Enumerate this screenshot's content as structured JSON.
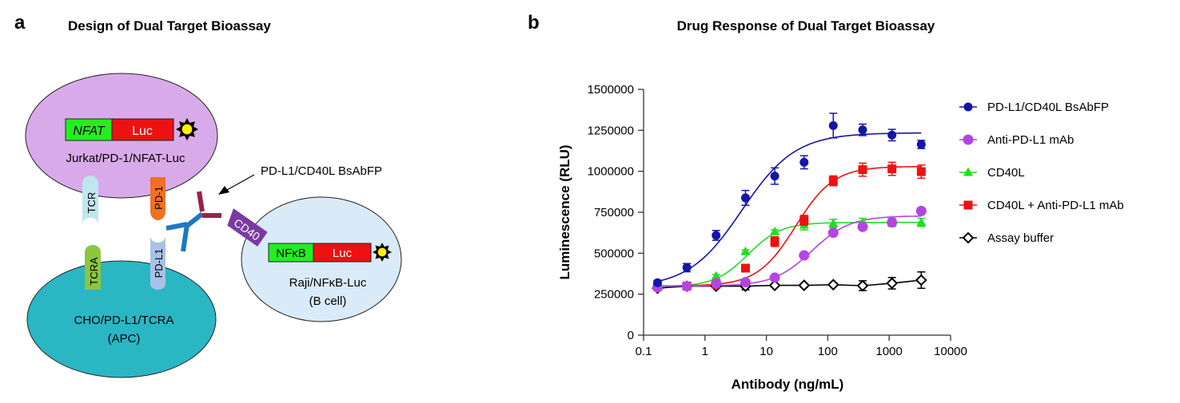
{
  "panel_a": {
    "letter": "a",
    "title": "Design of Dual Target Bioassay",
    "jurkat_cell": "Jurkat/PD-1/NFAT-Luc",
    "nfat": "NFAT",
    "luc": "Luc",
    "cho_cell_line1": "CHO/PD-L1/TCRA",
    "cho_cell_line2": "(APC)",
    "raji_cell_line1": "Raji/NFκB-Luc",
    "raji_cell_line2": "(B cell)",
    "nfkb": "NFκB",
    "tcr": "TCR",
    "tcra": "TCRA",
    "pd1": "PD-1",
    "pdl1": "PD-L1",
    "cd40": "CD40",
    "antibody_label": "PD-L1/CD40L BsAbFP",
    "colors": {
      "jurkat": "#d9aaea",
      "cho": "#2bb6c4",
      "raji": "#d9eaf8",
      "nfat_green": "#22ee22",
      "luc_red": "#ee1111",
      "tcr": "#bfe6ee",
      "tcra": "#8cc63f",
      "pd1": "#f07022",
      "pdl1": "#a9c1e6",
      "cd40": "#7a3aa0",
      "ab_blue": "#1f78c1",
      "ab_red": "#9b2148"
    }
  },
  "panel_b": {
    "letter": "b",
    "title": "Drug Response of Dual Target Bioassay"
  },
  "chart_data": {
    "type": "scatter",
    "title": "Drug Response of Dual Target Bioassay",
    "xlabel": "Antibody (ng/mL)",
    "ylabel": "Luminescence (RLU)",
    "xscale": "log",
    "xlim": [
      0.1,
      10000
    ],
    "ylim": [
      0,
      1500000
    ],
    "xticks": [
      "0.1",
      "1",
      "10",
      "100",
      "1000",
      "10000"
    ],
    "yticks": [
      "0",
      "250000",
      "500000",
      "750000",
      "1000000",
      "1250000",
      "1500000"
    ],
    "grid": false,
    "legend_position": "right",
    "x": [
      0.169,
      0.508,
      1.52,
      4.57,
      13.7,
      41.2,
      123,
      370,
      1111,
      3333
    ],
    "series": [
      {
        "name": "PD-L1/CD40L BsAbFP",
        "color": "#1515a8",
        "marker": "circle",
        "fit": "sigmoid",
        "values": [
          320000,
          412000,
          609000,
          838000,
          971000,
          1055000,
          1279000,
          1253000,
          1221000,
          1164000
        ],
        "errors": [
          15000,
          25000,
          30000,
          45000,
          50000,
          40000,
          75000,
          35000,
          35000,
          25000
        ]
      },
      {
        "name": "Anti-PD-L1 mAb",
        "color": "#b444e6",
        "marker": "circle",
        "fit": "sigmoid",
        "values": [
          292000,
          299000,
          317000,
          323000,
          351000,
          487000,
          625000,
          661000,
          688000,
          758000
        ],
        "errors": [
          8000,
          8000,
          8000,
          8000,
          10000,
          12000,
          15000,
          15000,
          15000,
          15000
        ]
      },
      {
        "name": "CD40L",
        "color": "#22dd22",
        "marker": "triangle",
        "fit": "sigmoid",
        "values": [
          292000,
          304000,
          360000,
          510000,
          631000,
          672000,
          682000,
          688000,
          688000,
          688000
        ],
        "errors": [
          8000,
          8000,
          10000,
          10000,
          12000,
          30000,
          25000,
          25000,
          25000,
          25000
        ]
      },
      {
        "name": "CD40L + Anti-PD-L1 mAb",
        "color": "#ee1111",
        "marker": "square",
        "fit": "sigmoid",
        "values": [
          299000,
          300000,
          310000,
          409000,
          571000,
          701000,
          942000,
          1010000,
          1015000,
          998000
        ],
        "errors": [
          8000,
          8000,
          8000,
          15000,
          30000,
          30000,
          30000,
          40000,
          40000,
          40000
        ]
      },
      {
        "name": "Assay buffer",
        "color": "#000000",
        "marker": "open-diamond",
        "fit": "line",
        "values": [
          287000,
          299000,
          299000,
          299000,
          304000,
          304000,
          308000,
          302000,
          317000,
          336000
        ],
        "errors": [
          10000,
          10000,
          10000,
          22000,
          10000,
          10000,
          10000,
          30000,
          35000,
          50000
        ]
      }
    ]
  }
}
